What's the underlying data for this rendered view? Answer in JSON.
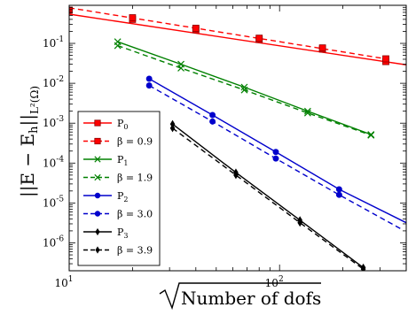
{
  "chart_data": {
    "type": "line",
    "xlabel": "√Number of dofs",
    "ylabel": "||E − E_h||_{L²(Ω)}",
    "xscale": "log",
    "yscale": "log",
    "xlim": [
      10,
      400
    ],
    "ylim": [
      2e-07,
      0.9
    ],
    "x_tick_labels": [
      {
        "value": 10,
        "base": "10",
        "exp": "1"
      },
      {
        "value": 100,
        "base": "10",
        "exp": "2"
      }
    ],
    "y_tick_labels": [
      {
        "value": 0.1,
        "base": "10",
        "exp": "-1"
      },
      {
        "value": 0.01,
        "base": "10",
        "exp": "-2"
      },
      {
        "value": 0.001,
        "base": "10",
        "exp": "-3"
      },
      {
        "value": 0.0001,
        "base": "10",
        "exp": "-4"
      },
      {
        "value": 1e-05,
        "base": "10",
        "exp": "-5"
      },
      {
        "value": 1e-06,
        "base": "10",
        "exp": "-6"
      }
    ],
    "legend_position": "lower-left",
    "series": [
      {
        "name": "P0",
        "sub": "0",
        "color": "#ff0000",
        "dashed": false,
        "marker": "square",
        "x": [
          10,
          20,
          40,
          80,
          160,
          320
        ],
        "y": [
          0.53,
          0.4,
          0.22,
          0.125,
          0.072,
          0.035
        ],
        "marked": [
          false,
          true,
          true,
          true,
          true,
          true
        ],
        "line_x": [
          10,
          400
        ],
        "line_y": [
          0.54,
          0.029
        ]
      },
      {
        "name": "β = 0.9",
        "color": "#ff0000",
        "dashed": true,
        "marker": "square",
        "x": [
          10,
          20,
          40,
          80,
          160,
          320
        ],
        "y": [
          0.68,
          0.44,
          0.24,
          0.135,
          0.077,
          0.041
        ],
        "marked": [
          true,
          true,
          true,
          true,
          true,
          true
        ],
        "line_x": [
          10,
          320
        ],
        "line_y": [
          0.78,
          0.041
        ]
      },
      {
        "name": "P1",
        "sub": "1",
        "color": "#008000",
        "dashed": false,
        "marker": "x",
        "x": [
          17,
          34,
          68,
          136,
          272
        ],
        "y": [
          0.11,
          0.03,
          0.008,
          0.002,
          0.00052
        ],
        "marked": [
          true,
          true,
          true,
          true,
          true
        ]
      },
      {
        "name": "β = 1.9",
        "color": "#008000",
        "dashed": true,
        "marker": "x",
        "x": [
          17,
          34,
          68,
          136,
          272
        ],
        "y": [
          0.088,
          0.024,
          0.0068,
          0.0018,
          0.0005
        ],
        "marked": [
          true,
          true,
          true,
          true,
          true
        ]
      },
      {
        "name": "P2",
        "sub": "2",
        "color": "#0000cc",
        "dashed": false,
        "marker": "circle",
        "x": [
          24,
          48,
          96,
          192,
          400
        ],
        "y": [
          0.013,
          0.0016,
          0.00019,
          2.2e-05,
          3.2e-06
        ],
        "marked": [
          true,
          true,
          true,
          true,
          false
        ]
      },
      {
        "name": "β = 3.0",
        "color": "#0000cc",
        "dashed": true,
        "marker": "circle",
        "x": [
          24,
          48,
          96,
          192,
          380
        ],
        "y": [
          0.0088,
          0.0011,
          0.00013,
          1.6e-05,
          2.2e-06
        ],
        "marked": [
          true,
          true,
          true,
          true,
          false
        ]
      },
      {
        "name": "P3",
        "sub": "3",
        "color": "#000000",
        "dashed": false,
        "marker": "diamond",
        "x": [
          31,
          62,
          125,
          250
        ],
        "y": [
          0.00095,
          5.8e-05,
          3.7e-06,
          2.4e-07
        ],
        "marked": [
          true,
          true,
          true,
          true
        ]
      },
      {
        "name": "β = 3.9",
        "color": "#000000",
        "dashed": true,
        "marker": "diamond",
        "x": [
          31,
          62,
          125,
          250
        ],
        "y": [
          0.00075,
          5e-05,
          3.2e-06,
          2.2e-07
        ],
        "marked": [
          true,
          true,
          true,
          true
        ]
      }
    ]
  }
}
